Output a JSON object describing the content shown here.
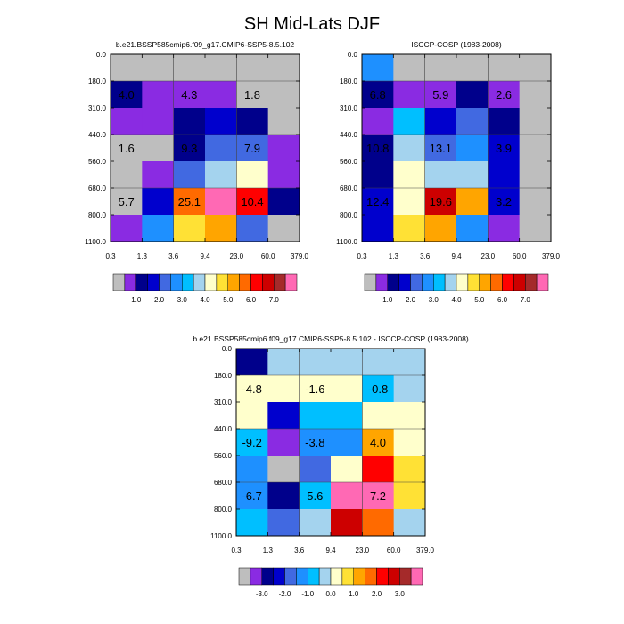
{
  "page": {
    "title": "SH Mid-Lats DJF"
  },
  "palettes": {
    "main": [
      "#bebebe",
      "#8a2be2",
      "#00008b",
      "#0000cd",
      "#4169e1",
      "#1e90ff",
      "#00bfff",
      "#a4d3ee",
      "#ffffcc",
      "#ffe135",
      "#ffa500",
      "#ff6a00",
      "#ff0000",
      "#cd0000",
      "#a52a2a",
      "#ff69b4"
    ],
    "diff": [
      "#bebebe",
      "#8a2be2",
      "#00008b",
      "#0000cd",
      "#4169e1",
      "#1e90ff",
      "#00bfff",
      "#a4d3ee",
      "#ffffcc",
      "#ffe135",
      "#ffa500",
      "#ff6a00",
      "#ff0000",
      "#cd0000",
      "#a52a2a",
      "#ff69b4"
    ]
  },
  "chart_data": [
    {
      "type": "heatmap",
      "title": "b.e21.BSSP585cmip6.f09_g17.CMIP6-SSP5-8.5.102",
      "x_ticks": [
        "0.3",
        "1.3",
        "3.6",
        "9.4",
        "23.0",
        "60.0",
        "379.0"
      ],
      "y_ticks": [
        "0.0",
        "180.0",
        "310.0",
        "440.0",
        "560.0",
        "680.0",
        "800.0",
        "1100.0"
      ],
      "cells": [
        [
          0,
          0,
          0,
          0,
          0,
          0
        ],
        [
          2,
          1,
          1,
          1,
          0,
          0
        ],
        [
          1,
          1,
          2,
          3,
          2,
          0
        ],
        [
          0,
          0,
          2,
          4,
          4,
          1
        ],
        [
          0,
          1,
          4,
          7,
          8,
          1
        ],
        [
          0,
          3,
          11,
          15,
          12,
          2
        ],
        [
          1,
          5,
          9,
          10,
          4,
          0
        ]
      ],
      "labels": [
        {
          "text": "4.0",
          "row": 1.5,
          "col": 0.5
        },
        {
          "text": "4.3",
          "row": 1.5,
          "col": 2.5
        },
        {
          "text": "1.8",
          "row": 1.5,
          "col": 4.5
        },
        {
          "text": "1.6",
          "row": 3.5,
          "col": 0.5
        },
        {
          "text": "9.3",
          "row": 3.5,
          "col": 2.5
        },
        {
          "text": "7.9",
          "row": 3.5,
          "col": 4.5
        },
        {
          "text": "5.7",
          "row": 5.5,
          "col": 0.5
        },
        {
          "text": "25.1",
          "row": 5.5,
          "col": 2.5
        },
        {
          "text": "10.4",
          "row": 5.5,
          "col": 4.5
        }
      ],
      "colorbar": {
        "palette": "main",
        "labels": [
          "1.0",
          "2.0",
          "3.0",
          "4.0",
          "5.0",
          "6.0",
          "7.0"
        ]
      }
    },
    {
      "type": "heatmap",
      "title": "ISCCP-COSP (1983-2008)",
      "x_ticks": [
        "0.3",
        "1.3",
        "3.6",
        "9.4",
        "23.0",
        "60.0",
        "379.0"
      ],
      "y_ticks": [
        "0.0",
        "180.0",
        "310.0",
        "440.0",
        "560.0",
        "680.0",
        "800.0",
        "1100.0"
      ],
      "cells": [
        [
          5,
          0,
          0,
          0,
          0,
          0
        ],
        [
          2,
          1,
          1,
          2,
          1,
          0
        ],
        [
          1,
          6,
          3,
          4,
          2,
          0
        ],
        [
          2,
          7,
          4,
          5,
          3,
          0
        ],
        [
          2,
          8,
          7,
          7,
          3,
          0
        ],
        [
          3,
          8,
          13,
          10,
          3,
          0
        ],
        [
          3,
          9,
          10,
          5,
          1,
          0
        ]
      ],
      "labels": [
        {
          "text": "6.8",
          "row": 1.5,
          "col": 0.5
        },
        {
          "text": "5.9",
          "row": 1.5,
          "col": 2.5
        },
        {
          "text": "2.6",
          "row": 1.5,
          "col": 4.5
        },
        {
          "text": "10.8",
          "row": 3.5,
          "col": 0.5
        },
        {
          "text": "13.1",
          "row": 3.5,
          "col": 2.5
        },
        {
          "text": "3.9",
          "row": 3.5,
          "col": 4.5
        },
        {
          "text": "12.4",
          "row": 5.5,
          "col": 0.5
        },
        {
          "text": "19.6",
          "row": 5.5,
          "col": 2.5
        },
        {
          "text": "3.2",
          "row": 5.5,
          "col": 4.5
        }
      ],
      "colorbar": {
        "palette": "main",
        "labels": [
          "1.0",
          "2.0",
          "3.0",
          "4.0",
          "5.0",
          "6.0",
          "7.0"
        ]
      }
    },
    {
      "type": "heatmap",
      "title": "b.e21.BSSP585cmip6.f09_g17.CMIP6-SSP5-8.5.102 - ISCCP-COSP (1983-2008)",
      "x_ticks": [
        "0.3",
        "1.3",
        "3.6",
        "9.4",
        "23.0",
        "60.0",
        "379.0"
      ],
      "y_ticks": [
        "0.0",
        "180.0",
        "310.0",
        "440.0",
        "560.0",
        "680.0",
        "800.0",
        "1100.0"
      ],
      "cells": [
        [
          2,
          7,
          7,
          7,
          7,
          7
        ],
        [
          8,
          8,
          8,
          8,
          6,
          7
        ],
        [
          8,
          3,
          6,
          6,
          8,
          8
        ],
        [
          6,
          1,
          5,
          5,
          10,
          8
        ],
        [
          5,
          0,
          4,
          8,
          12,
          9
        ],
        [
          5,
          2,
          6,
          15,
          15,
          9
        ],
        [
          6,
          4,
          7,
          13,
          11,
          7
        ]
      ],
      "labels": [
        {
          "text": "-4.8",
          "row": 1.5,
          "col": 0.5
        },
        {
          "text": "-1.6",
          "row": 1.5,
          "col": 2.5
        },
        {
          "text": "-0.8",
          "row": 1.5,
          "col": 4.5
        },
        {
          "text": "-9.2",
          "row": 3.5,
          "col": 0.5
        },
        {
          "text": "-3.8",
          "row": 3.5,
          "col": 2.5
        },
        {
          "text": "4.0",
          "row": 3.5,
          "col": 4.5
        },
        {
          "text": "-6.7",
          "row": 5.5,
          "col": 0.5
        },
        {
          "text": "5.6",
          "row": 5.5,
          "col": 2.5
        },
        {
          "text": "7.2",
          "row": 5.5,
          "col": 4.5
        }
      ],
      "colorbar": {
        "palette": "diff",
        "labels": [
          "-3.0",
          "-2.0",
          "-1.0",
          "0.0",
          "1.0",
          "2.0",
          "3.0"
        ]
      }
    }
  ]
}
